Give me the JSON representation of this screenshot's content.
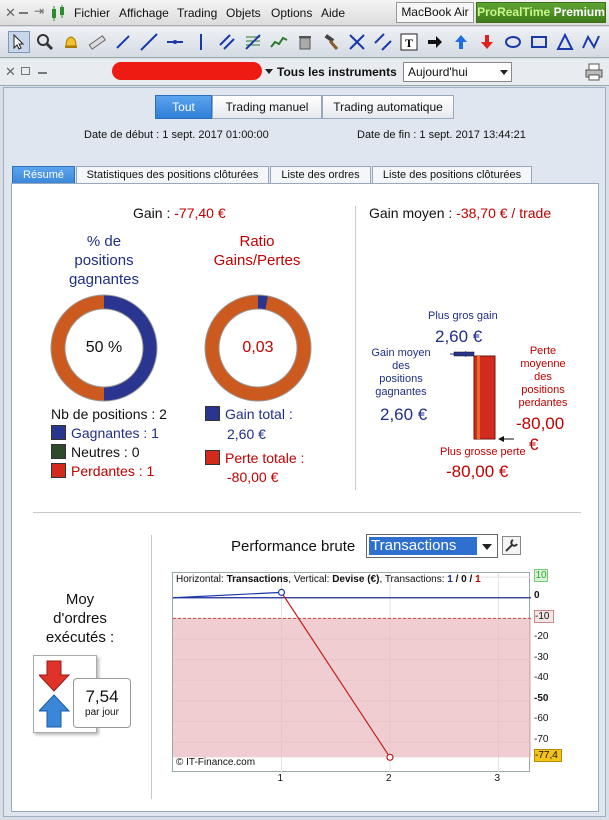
{
  "menubar": {
    "items": [
      "Fichier",
      "Affichage",
      "Trading",
      "Objets",
      "Options",
      "Aide"
    ],
    "device": "MacBook Air",
    "badge_brand": "ProRealTime",
    "badge_suffix": "Premium"
  },
  "toolbar": {
    "icons": [
      "pointer-icon",
      "zoom-icon",
      "alarm-icon",
      "ruler-icon",
      "segment-icon",
      "line-icon",
      "horizontal-line-icon",
      "vertical-line-icon",
      "parallel-lines-icon",
      "fibonacci-icon",
      "trendline-icon",
      "trash-icon",
      "hammer-icon",
      "cross-arrows-icon",
      "channel-icon",
      "text-icon",
      "arrow-right-icon",
      "arrow-up-icon",
      "arrow-down-icon",
      "ellipse-icon",
      "rectangle-icon",
      "triangle-icon",
      "zigzag-icon"
    ]
  },
  "bar2": {
    "instrument_label": "Tous les instruments",
    "period_value": "Aujourd'hui"
  },
  "filters": {
    "all": "Tout",
    "manual": "Trading manuel",
    "auto": "Trading automatique"
  },
  "dates": {
    "start_label": "Date de début :",
    "start_value": "1 sept. 2017 01:00:00",
    "end_label": "Date de fin :",
    "end_value": "1 sept. 2017 13:44:21"
  },
  "tabs": [
    "Résumé",
    "Statistiques des positions clôturées",
    "Liste des ordres",
    "Liste des positions clôturées"
  ],
  "summary": {
    "gain_label": "Gain : ",
    "gain_value": "-77,40 €",
    "pct_title_1": "% de",
    "pct_title_2": "positions",
    "pct_title_3": "gagnantes",
    "pct_value": "50 %",
    "pct_fraction": 0.5,
    "ratio_title_1": "Ratio",
    "ratio_title_2": "Gains/Pertes",
    "ratio_value": "0,03",
    "ratio_fraction": 0.03,
    "nb_positions": "Nb de positions : 2",
    "gagnantes": "Gagnantes : 1",
    "neutres": "Neutres : 0",
    "perdantes": "Perdantes : 1",
    "gain_total_label": "Gain total :",
    "gain_total_value": "2,60 €",
    "perte_totale_label": "Perte totale :",
    "perte_totale_value": "-80,00 €",
    "gain_moyen_label": "Gain moyen : ",
    "gain_moyen_value": "-38,70 € / trade",
    "plus_gros_gain_label": "Plus gros gain",
    "plus_gros_gain_value": "2,60 €",
    "gain_moyen_pos_label_1": "Gain moyen",
    "gain_moyen_pos_label_2": "des",
    "gain_moyen_pos_label_3": "positions",
    "gain_moyen_pos_label_4": "gagnantes",
    "gain_moyen_pos_value": "2,60 €",
    "perte_moyenne_label_1": "Perte",
    "perte_moyenne_label_2": "moyenne",
    "perte_moyenne_label_3": "des",
    "perte_moyenne_label_4": "positions",
    "perte_moyenne_label_5": "perdantes",
    "perte_moyenne_value": "-80,00",
    "perte_moyenne_unit": "€",
    "plus_grosse_perte_label": "Plus grosse perte",
    "plus_grosse_perte_value": "-80,00 €",
    "colors": {
      "blue": "#2a3590",
      "red": "#d32a1e",
      "green": "#2d4a2d"
    }
  },
  "orders": {
    "title_1": "Moy",
    "title_2": "d'ordres",
    "title_3": "exécutés :",
    "value": "7,54",
    "unit": "par jour"
  },
  "performance": {
    "title": "Performance brute",
    "select_value": "Transactions",
    "info_h_label": "Horizontal: ",
    "info_h_value": "Transactions",
    "info_v_label": ", Vertical: ",
    "info_v_value": "Devise (€)",
    "info_t_label": ", Transactions: ",
    "info_t_1": "1",
    "info_t_sep1": " / ",
    "info_t_2": "0",
    "info_t_sep2": " / ",
    "info_t_3": "1",
    "credit": "© IT-Finance.com"
  },
  "chart_data": {
    "type": "line",
    "x": [
      0,
      1,
      2
    ],
    "y": [
      0,
      2.6,
      -77.4
    ],
    "xticks": [
      "1",
      "2",
      "3"
    ],
    "yticks": [
      "10",
      "0",
      "-10",
      "-20",
      "-30",
      "-40",
      "-50",
      "-60",
      "-70",
      "-77,4"
    ],
    "ylim": [
      -85,
      12
    ],
    "xlim": [
      0,
      3.3
    ],
    "grid": true
  }
}
